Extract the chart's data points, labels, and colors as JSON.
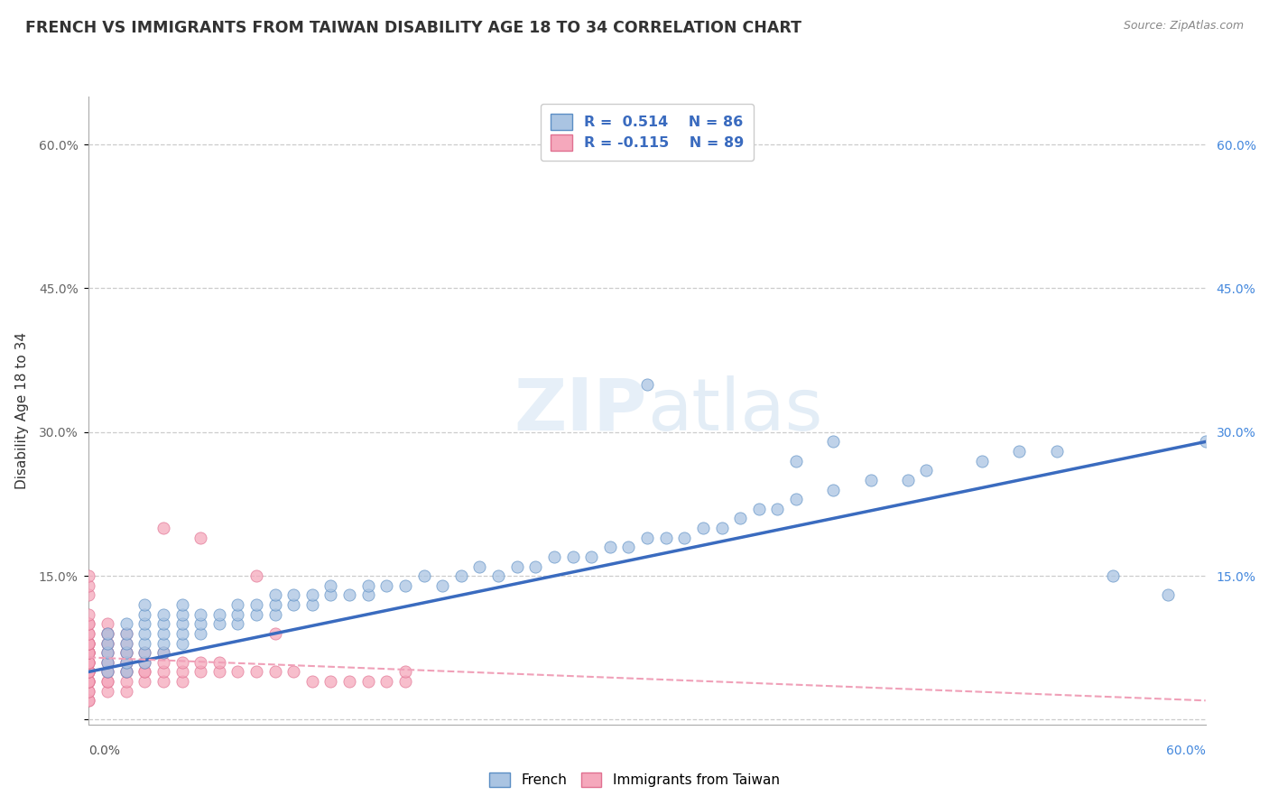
{
  "title": "FRENCH VS IMMIGRANTS FROM TAIWAN DISABILITY AGE 18 TO 34 CORRELATION CHART",
  "source": "Source: ZipAtlas.com",
  "ylabel": "Disability Age 18 to 34",
  "xlim": [
    0,
    0.6
  ],
  "ylim": [
    -0.005,
    0.65
  ],
  "french_color": "#aac4e2",
  "taiwan_color": "#f5a8bc",
  "french_edge_color": "#5b8ec4",
  "taiwan_edge_color": "#e07090",
  "french_line_color": "#3a6bbf",
  "taiwan_line_color": "#f0a0b8",
  "watermark_zip": "ZIP",
  "watermark_atlas": "atlas",
  "french_R": 0.514,
  "taiwan_R": -0.115,
  "french_N": 86,
  "taiwan_N": 89,
  "french_x": [
    0.01,
    0.01,
    0.01,
    0.01,
    0.01,
    0.02,
    0.02,
    0.02,
    0.02,
    0.02,
    0.02,
    0.03,
    0.03,
    0.03,
    0.03,
    0.03,
    0.03,
    0.03,
    0.04,
    0.04,
    0.04,
    0.04,
    0.04,
    0.05,
    0.05,
    0.05,
    0.05,
    0.05,
    0.06,
    0.06,
    0.06,
    0.07,
    0.07,
    0.08,
    0.08,
    0.08,
    0.09,
    0.09,
    0.1,
    0.1,
    0.1,
    0.11,
    0.11,
    0.12,
    0.12,
    0.13,
    0.13,
    0.14,
    0.15,
    0.15,
    0.16,
    0.17,
    0.18,
    0.19,
    0.2,
    0.21,
    0.22,
    0.23,
    0.24,
    0.25,
    0.26,
    0.27,
    0.28,
    0.29,
    0.3,
    0.31,
    0.32,
    0.33,
    0.34,
    0.35,
    0.36,
    0.37,
    0.38,
    0.4,
    0.42,
    0.44,
    0.45,
    0.48,
    0.5,
    0.52,
    0.38,
    0.4,
    0.3,
    0.55,
    0.58,
    0.6
  ],
  "french_y": [
    0.05,
    0.06,
    0.07,
    0.08,
    0.09,
    0.05,
    0.06,
    0.07,
    0.08,
    0.09,
    0.1,
    0.06,
    0.07,
    0.08,
    0.09,
    0.1,
    0.11,
    0.12,
    0.07,
    0.08,
    0.09,
    0.1,
    0.11,
    0.08,
    0.09,
    0.1,
    0.11,
    0.12,
    0.09,
    0.1,
    0.11,
    0.1,
    0.11,
    0.1,
    0.11,
    0.12,
    0.11,
    0.12,
    0.11,
    0.12,
    0.13,
    0.12,
    0.13,
    0.12,
    0.13,
    0.13,
    0.14,
    0.13,
    0.13,
    0.14,
    0.14,
    0.14,
    0.15,
    0.14,
    0.15,
    0.16,
    0.15,
    0.16,
    0.16,
    0.17,
    0.17,
    0.17,
    0.18,
    0.18,
    0.19,
    0.19,
    0.19,
    0.2,
    0.2,
    0.21,
    0.22,
    0.22,
    0.23,
    0.24,
    0.25,
    0.25,
    0.26,
    0.27,
    0.28,
    0.28,
    0.27,
    0.29,
    0.35,
    0.15,
    0.13,
    0.29
  ],
  "taiwan_x": [
    0.0,
    0.0,
    0.0,
    0.0,
    0.0,
    0.0,
    0.0,
    0.0,
    0.0,
    0.0,
    0.0,
    0.0,
    0.0,
    0.0,
    0.0,
    0.0,
    0.0,
    0.0,
    0.0,
    0.0,
    0.0,
    0.0,
    0.0,
    0.0,
    0.0,
    0.0,
    0.0,
    0.0,
    0.0,
    0.0,
    0.0,
    0.01,
    0.01,
    0.01,
    0.01,
    0.01,
    0.01,
    0.01,
    0.01,
    0.01,
    0.01,
    0.01,
    0.01,
    0.01,
    0.01,
    0.02,
    0.02,
    0.02,
    0.02,
    0.02,
    0.02,
    0.02,
    0.02,
    0.02,
    0.02,
    0.03,
    0.03,
    0.03,
    0.03,
    0.03,
    0.04,
    0.04,
    0.04,
    0.04,
    0.05,
    0.05,
    0.05,
    0.06,
    0.06,
    0.07,
    0.07,
    0.08,
    0.09,
    0.1,
    0.11,
    0.12,
    0.13,
    0.14,
    0.15,
    0.16,
    0.04,
    0.06,
    0.09,
    0.1,
    0.17,
    0.17,
    0.0,
    0.0,
    0.0
  ],
  "taiwan_y": [
    0.02,
    0.02,
    0.03,
    0.03,
    0.04,
    0.04,
    0.04,
    0.04,
    0.05,
    0.05,
    0.05,
    0.05,
    0.05,
    0.06,
    0.06,
    0.06,
    0.06,
    0.07,
    0.07,
    0.07,
    0.07,
    0.07,
    0.08,
    0.08,
    0.08,
    0.08,
    0.09,
    0.09,
    0.1,
    0.1,
    0.11,
    0.03,
    0.04,
    0.04,
    0.05,
    0.05,
    0.06,
    0.06,
    0.07,
    0.07,
    0.08,
    0.08,
    0.09,
    0.09,
    0.1,
    0.03,
    0.04,
    0.05,
    0.05,
    0.06,
    0.06,
    0.07,
    0.07,
    0.08,
    0.09,
    0.04,
    0.05,
    0.05,
    0.06,
    0.07,
    0.04,
    0.05,
    0.06,
    0.07,
    0.04,
    0.05,
    0.06,
    0.05,
    0.06,
    0.05,
    0.06,
    0.05,
    0.05,
    0.05,
    0.05,
    0.04,
    0.04,
    0.04,
    0.04,
    0.04,
    0.2,
    0.19,
    0.15,
    0.09,
    0.04,
    0.05,
    0.13,
    0.14,
    0.15
  ]
}
